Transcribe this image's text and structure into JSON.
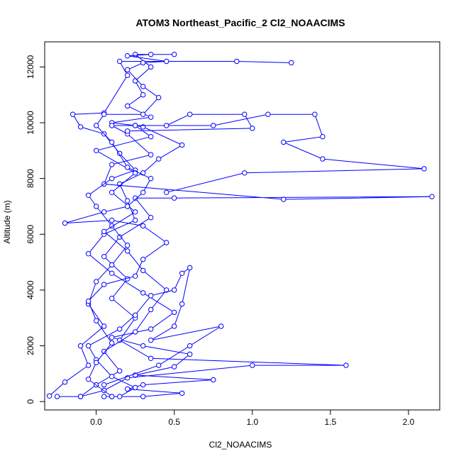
{
  "chart_data": {
    "type": "line",
    "title": "ATOM3 Northeast_Pacific_2 Cl2_NOAACIMS",
    "xlabel": "Cl2_NOAACIMS",
    "ylabel": "Altitude (m)",
    "xlim": [
      -0.33,
      2.2
    ],
    "ylim": [
      -300,
      12900
    ],
    "xticks": [
      0.0,
      0.5,
      1.0,
      1.5,
      2.0
    ],
    "xtick_labels": [
      "0.0",
      "0.5",
      "1.0",
      "1.5",
      "2.0"
    ],
    "yticks": [
      0,
      2000,
      4000,
      6000,
      8000,
      10000,
      12000
    ],
    "ytick_labels": [
      "0",
      "2000",
      "4000",
      "6000",
      "8000",
      "10000",
      "12000"
    ],
    "grid": false,
    "colors": {
      "series": "#0000ff",
      "axes": "#000000"
    },
    "marker": "open-circle",
    "series": [
      {
        "points": [
          [
            0.05,
            180
          ],
          [
            0.1,
            180
          ],
          [
            0.3,
            180
          ],
          [
            0.55,
            300
          ],
          [
            0.2,
            450
          ],
          [
            0.3,
            600
          ],
          [
            0.75,
            780
          ],
          [
            0.25,
            950
          ],
          [
            0.5,
            1250
          ],
          [
            0.6,
            1700
          ],
          [
            0.3,
            2000
          ],
          [
            0.1,
            2300
          ],
          [
            0.35,
            2600
          ],
          [
            0.5,
            3200
          ],
          [
            0.3,
            3900
          ],
          [
            0.1,
            4600
          ],
          [
            -0.05,
            5300
          ],
          [
            0.05,
            6000
          ],
          [
            0.25,
            6500
          ],
          [
            0.2,
            7200
          ],
          [
            0.15,
            7800
          ],
          [
            0.3,
            8200
          ],
          [
            0.4,
            8700
          ],
          [
            0.55,
            9200
          ],
          [
            0.3,
            9850
          ],
          [
            0.25,
            9900
          ],
          [
            0.1,
            10000
          ],
          [
            0.35,
            10200
          ],
          [
            0.2,
            10600
          ],
          [
            0.3,
            11000
          ],
          [
            0.25,
            11500
          ],
          [
            0.35,
            12000
          ],
          [
            0.25,
            12450
          ],
          [
            0.5,
            12450
          ]
        ]
      },
      {
        "points": [
          [
            -0.25,
            180
          ],
          [
            -0.1,
            180
          ],
          [
            0.05,
            400
          ],
          [
            0.2,
            850
          ],
          [
            1.0,
            1300
          ],
          [
            1.6,
            1300
          ],
          [
            0.35,
            1550
          ],
          [
            0.15,
            2200
          ],
          [
            0.25,
            3000
          ],
          [
            0.1,
            3700
          ],
          [
            0.2,
            4400
          ],
          [
            0.05,
            5200
          ],
          [
            0.15,
            5900
          ],
          [
            0.35,
            6600
          ],
          [
            0.25,
            7300
          ],
          [
            0.5,
            7300
          ],
          [
            2.15,
            7350
          ],
          [
            1.2,
            7250
          ],
          [
            0.05,
            7800
          ],
          [
            0.1,
            8500
          ],
          [
            0.35,
            8850
          ],
          [
            0.2,
            9600
          ],
          [
            0.1,
            9900
          ],
          [
            0.75,
            9900
          ],
          [
            1.1,
            10300
          ],
          [
            1.4,
            10300
          ],
          [
            1.45,
            9500
          ],
          [
            1.2,
            9300
          ],
          [
            1.45,
            8700
          ],
          [
            2.1,
            8350
          ],
          [
            0.95,
            8200
          ],
          [
            0.45,
            7500
          ]
        ]
      },
      {
        "points": [
          [
            -0.3,
            200
          ],
          [
            -0.2,
            700
          ],
          [
            -0.05,
            1300
          ],
          [
            -0.1,
            2000
          ],
          [
            0.05,
            2700
          ],
          [
            -0.05,
            3500
          ],
          [
            0.0,
            4300
          ],
          [
            0.1,
            4900
          ],
          [
            0.2,
            5600
          ],
          [
            0.1,
            6300
          ],
          [
            0.0,
            7000
          ],
          [
            -0.05,
            7400
          ],
          [
            0.1,
            8000
          ],
          [
            0.25,
            8300
          ],
          [
            0.15,
            8900
          ],
          [
            0.05,
            9600
          ],
          [
            -0.1,
            9850
          ],
          [
            -0.15,
            10300
          ],
          [
            0.05,
            10350
          ],
          [
            0.2,
            11700
          ],
          [
            0.15,
            12200
          ],
          [
            0.9,
            12200
          ],
          [
            1.25,
            12150
          ]
        ]
      },
      {
        "points": [
          [
            -0.1,
            180
          ],
          [
            0.0,
            600
          ],
          [
            0.15,
            1100
          ],
          [
            0.05,
            1800
          ],
          [
            0.25,
            2500
          ],
          [
            0.35,
            3300
          ],
          [
            0.45,
            4000
          ],
          [
            0.3,
            4700
          ],
          [
            0.2,
            5400
          ],
          [
            0.05,
            6100
          ],
          [
            0.25,
            6800
          ],
          [
            0.1,
            7500
          ],
          [
            0.25,
            8200
          ],
          [
            0.0,
            9000
          ],
          [
            0.35,
            9500
          ],
          [
            0.25,
            9900
          ],
          [
            0.45,
            9900
          ],
          [
            0.6,
            10300
          ],
          [
            0.95,
            10300
          ],
          [
            1.0,
            9800
          ],
          [
            0.2,
            9700
          ]
        ]
      },
      {
        "points": [
          [
            0.15,
            180
          ],
          [
            0.25,
            500
          ],
          [
            0.1,
            900
          ],
          [
            0.0,
            1500
          ],
          [
            -0.05,
            2000
          ],
          [
            0.15,
            2600
          ],
          [
            0.25,
            3100
          ],
          [
            0.35,
            3800
          ],
          [
            0.5,
            4000
          ],
          [
            0.55,
            4600
          ],
          [
            0.6,
            4800
          ],
          [
            0.55,
            3500
          ],
          [
            0.5,
            2700
          ],
          [
            0.35,
            2200
          ],
          [
            0.8,
            2700
          ],
          [
            0.6,
            2000
          ],
          [
            0.4,
            1300
          ],
          [
            0.05,
            600
          ]
        ]
      },
      {
        "points": [
          [
            0.1,
            180
          ],
          [
            -0.05,
            800
          ],
          [
            0.0,
            1400
          ],
          [
            0.1,
            2100
          ],
          [
            0.0,
            2900
          ],
          [
            -0.05,
            3600
          ],
          [
            0.05,
            4200
          ],
          [
            0.25,
            4500
          ],
          [
            0.3,
            5100
          ],
          [
            0.45,
            5700
          ],
          [
            0.3,
            6300
          ],
          [
            0.1,
            6500
          ],
          [
            -0.2,
            6400
          ],
          [
            0.05,
            6800
          ],
          [
            0.2,
            7000
          ],
          [
            0.3,
            7500
          ],
          [
            0.35,
            8000
          ],
          [
            0.2,
            8400
          ],
          [
            0.1,
            9300
          ],
          [
            0.0,
            9900
          ],
          [
            0.05,
            10300
          ],
          [
            0.3,
            10300
          ],
          [
            0.4,
            10900
          ],
          [
            0.3,
            11300
          ],
          [
            0.2,
            11900
          ],
          [
            0.3,
            12150
          ],
          [
            0.45,
            12200
          ],
          [
            0.2,
            12400
          ],
          [
            0.35,
            12450
          ]
        ]
      }
    ]
  }
}
